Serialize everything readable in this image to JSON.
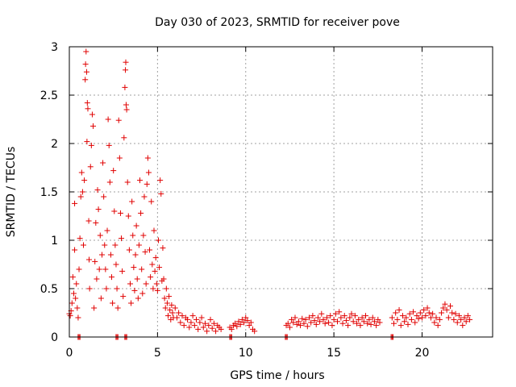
{
  "chart_data": {
    "type": "scatter",
    "title": "Day 030 of 2023, SRMTID for receiver pove",
    "xlabel": "GPS time / hours",
    "ylabel": "SRMTID / TECUs",
    "xlim": [
      0,
      24
    ],
    "ylim": [
      0,
      3
    ],
    "xticks": [
      0,
      5,
      10,
      15,
      20
    ],
    "yticks": [
      0,
      0.5,
      1,
      1.5,
      2,
      2.5,
      3
    ],
    "xtick_labels": [
      "0",
      "5",
      "10",
      "15",
      "20"
    ],
    "ytick_labels": [
      "0",
      "0.5",
      "1",
      "1.5",
      "2",
      "2.5",
      "3"
    ],
    "grid": true,
    "marker": "plus",
    "color": "#e00000",
    "series": [
      {
        "points": [
          [
            0.0,
            0.24
          ],
          [
            0.05,
            0.22
          ],
          [
            0.1,
            0.27
          ],
          [
            0.15,
            0.35
          ],
          [
            0.2,
            0.62
          ],
          [
            0.25,
            0.45
          ],
          [
            0.3,
            0.9
          ],
          [
            0.3,
            1.38
          ],
          [
            0.35,
            0.4
          ],
          [
            0.4,
            0.55
          ],
          [
            0.45,
            0.3
          ],
          [
            0.5,
            0.2
          ],
          [
            0.55,
            0.7
          ],
          [
            0.6,
            1.02
          ],
          [
            0.65,
            1.45
          ],
          [
            0.7,
            1.7
          ],
          [
            0.75,
            1.5
          ],
          [
            0.8,
            0.95
          ],
          [
            0.85,
            1.62
          ],
          [
            0.9,
            2.66
          ],
          [
            0.92,
            2.82
          ],
          [
            0.95,
            2.95
          ],
          [
            0.98,
            2.74
          ],
          [
            1.0,
            2.02
          ],
          [
            1.02,
            2.42
          ],
          [
            1.05,
            2.36
          ],
          [
            1.1,
            1.2
          ],
          [
            1.12,
            0.8
          ],
          [
            1.15,
            0.5
          ],
          [
            1.2,
            1.76
          ],
          [
            1.25,
            1.98
          ],
          [
            1.3,
            2.3
          ],
          [
            1.35,
            2.18
          ],
          [
            1.4,
            0.3
          ],
          [
            1.45,
            0.78
          ],
          [
            1.5,
            1.18
          ],
          [
            1.55,
            0.6
          ],
          [
            1.6,
            1.52
          ],
          [
            1.65,
            1.32
          ],
          [
            1.7,
            0.7
          ],
          [
            1.75,
            1.05
          ],
          [
            1.8,
            0.4
          ],
          [
            1.85,
            0.85
          ],
          [
            1.9,
            1.8
          ],
          [
            1.95,
            1.45
          ],
          [
            2.0,
            0.95
          ],
          [
            2.05,
            0.7
          ],
          [
            2.1,
            0.5
          ],
          [
            2.15,
            1.1
          ],
          [
            2.2,
            2.25
          ],
          [
            2.25,
            1.98
          ],
          [
            2.3,
            1.6
          ],
          [
            2.35,
            0.85
          ],
          [
            2.4,
            0.62
          ],
          [
            2.45,
            0.35
          ],
          [
            2.5,
            1.72
          ],
          [
            2.55,
            1.3
          ],
          [
            2.6,
            0.95
          ],
          [
            2.65,
            0.75
          ],
          [
            2.7,
            0.5
          ],
          [
            2.75,
            0.3
          ],
          [
            2.8,
            2.24
          ],
          [
            2.85,
            1.85
          ],
          [
            2.9,
            1.28
          ],
          [
            2.95,
            1.02
          ],
          [
            3.0,
            0.68
          ],
          [
            3.05,
            0.42
          ],
          [
            3.1,
            2.06
          ],
          [
            3.15,
            2.58
          ],
          [
            3.18,
            2.76
          ],
          [
            3.2,
            2.84
          ],
          [
            3.22,
            2.4
          ],
          [
            3.25,
            2.35
          ],
          [
            3.3,
            1.6
          ],
          [
            3.35,
            1.25
          ],
          [
            3.4,
            0.9
          ],
          [
            3.45,
            0.55
          ],
          [
            3.5,
            0.35
          ],
          [
            3.55,
            1.4
          ],
          [
            3.6,
            1.05
          ],
          [
            3.65,
            0.72
          ],
          [
            3.7,
            0.48
          ],
          [
            3.75,
            0.85
          ],
          [
            3.8,
            1.15
          ],
          [
            3.85,
            0.6
          ],
          [
            3.9,
            0.4
          ],
          [
            3.95,
            0.95
          ],
          [
            4.0,
            1.62
          ],
          [
            4.05,
            1.28
          ],
          [
            4.1,
            0.7
          ],
          [
            4.15,
            0.45
          ],
          [
            4.2,
            1.05
          ],
          [
            4.25,
            1.45
          ],
          [
            4.3,
            0.88
          ],
          [
            4.35,
            0.55
          ],
          [
            4.4,
            1.58
          ],
          [
            4.45,
            1.85
          ],
          [
            4.5,
            1.7
          ],
          [
            4.55,
            0.9
          ],
          [
            4.6,
            0.62
          ],
          [
            4.65,
            1.4
          ],
          [
            4.7,
            0.75
          ],
          [
            4.75,
            0.5
          ],
          [
            4.8,
            1.1
          ],
          [
            4.85,
            0.68
          ],
          [
            4.9,
            0.82
          ],
          [
            4.95,
            0.55
          ],
          [
            5.0,
            0.48
          ],
          [
            5.05,
            1.0
          ],
          [
            5.1,
            0.72
          ],
          [
            5.15,
            1.62
          ],
          [
            5.2,
            1.48
          ],
          [
            5.25,
            0.58
          ],
          [
            5.3,
            0.92
          ],
          [
            5.35,
            0.6
          ],
          [
            5.4,
            0.4
          ],
          [
            5.45,
            0.3
          ],
          [
            5.5,
            0.5
          ],
          [
            5.55,
            0.35
          ],
          [
            5.6,
            0.22
          ],
          [
            5.65,
            0.42
          ],
          [
            5.7,
            0.28
          ],
          [
            5.75,
            0.18
          ],
          [
            5.8,
            0.33
          ],
          [
            5.85,
            0.25
          ],
          [
            5.9,
            0.2
          ],
          [
            6.0,
            0.3
          ],
          [
            6.1,
            0.2
          ],
          [
            6.2,
            0.25
          ],
          [
            6.3,
            0.15
          ],
          [
            6.4,
            0.22
          ],
          [
            6.5,
            0.12
          ],
          [
            6.6,
            0.2
          ],
          [
            6.7,
            0.18
          ],
          [
            6.8,
            0.1
          ],
          [
            6.9,
            0.15
          ],
          [
            7.0,
            0.22
          ],
          [
            7.1,
            0.12
          ],
          [
            7.2,
            0.18
          ],
          [
            7.3,
            0.08
          ],
          [
            7.4,
            0.15
          ],
          [
            7.5,
            0.2
          ],
          [
            7.6,
            0.1
          ],
          [
            7.7,
            0.14
          ],
          [
            7.8,
            0.06
          ],
          [
            7.9,
            0.12
          ],
          [
            8.0,
            0.18
          ],
          [
            8.1,
            0.09
          ],
          [
            8.2,
            0.14
          ],
          [
            8.3,
            0.06
          ],
          [
            8.4,
            0.12
          ],
          [
            8.5,
            0.1
          ],
          [
            8.6,
            0.08
          ],
          [
            9.1,
            0.1
          ],
          [
            9.2,
            0.08
          ],
          [
            9.3,
            0.12
          ],
          [
            9.4,
            0.14
          ],
          [
            9.5,
            0.11
          ],
          [
            9.6,
            0.16
          ],
          [
            9.7,
            0.13
          ],
          [
            9.8,
            0.18
          ],
          [
            9.9,
            0.15
          ],
          [
            10.0,
            0.2
          ],
          [
            10.1,
            0.17
          ],
          [
            10.2,
            0.12
          ],
          [
            10.3,
            0.15
          ],
          [
            10.4,
            0.08
          ],
          [
            10.5,
            0.06
          ],
          [
            12.3,
            0.12
          ],
          [
            12.4,
            0.14
          ],
          [
            12.5,
            0.1
          ],
          [
            12.6,
            0.18
          ],
          [
            12.7,
            0.15
          ],
          [
            12.8,
            0.2
          ],
          [
            12.9,
            0.13
          ],
          [
            13.0,
            0.16
          ],
          [
            13.1,
            0.12
          ],
          [
            13.2,
            0.19
          ],
          [
            13.3,
            0.14
          ],
          [
            13.4,
            0.18
          ],
          [
            13.5,
            0.11
          ],
          [
            13.6,
            0.2
          ],
          [
            13.7,
            0.15
          ],
          [
            13.8,
            0.22
          ],
          [
            13.9,
            0.17
          ],
          [
            14.0,
            0.13
          ],
          [
            14.1,
            0.2
          ],
          [
            14.2,
            0.16
          ],
          [
            14.3,
            0.24
          ],
          [
            14.4,
            0.18
          ],
          [
            14.5,
            0.14
          ],
          [
            14.6,
            0.2
          ],
          [
            14.7,
            0.15
          ],
          [
            14.8,
            0.22
          ],
          [
            14.9,
            0.12
          ],
          [
            15.0,
            0.18
          ],
          [
            15.1,
            0.24
          ],
          [
            15.2,
            0.16
          ],
          [
            15.3,
            0.26
          ],
          [
            15.4,
            0.2
          ],
          [
            15.5,
            0.14
          ],
          [
            15.6,
            0.22
          ],
          [
            15.7,
            0.17
          ],
          [
            15.8,
            0.12
          ],
          [
            15.9,
            0.2
          ],
          [
            16.0,
            0.24
          ],
          [
            16.1,
            0.16
          ],
          [
            16.2,
            0.22
          ],
          [
            16.3,
            0.14
          ],
          [
            16.4,
            0.18
          ],
          [
            16.5,
            0.12
          ],
          [
            16.6,
            0.2
          ],
          [
            16.7,
            0.16
          ],
          [
            16.8,
            0.22
          ],
          [
            16.9,
            0.14
          ],
          [
            17.0,
            0.18
          ],
          [
            17.1,
            0.13
          ],
          [
            17.2,
            0.2
          ],
          [
            17.3,
            0.16
          ],
          [
            17.4,
            0.12
          ],
          [
            17.5,
            0.18
          ],
          [
            17.6,
            0.15
          ],
          [
            18.3,
            0.2
          ],
          [
            18.4,
            0.14
          ],
          [
            18.5,
            0.25
          ],
          [
            18.6,
            0.18
          ],
          [
            18.7,
            0.28
          ],
          [
            18.8,
            0.12
          ],
          [
            18.9,
            0.22
          ],
          [
            19.0,
            0.16
          ],
          [
            19.1,
            0.2
          ],
          [
            19.2,
            0.13
          ],
          [
            19.3,
            0.24
          ],
          [
            19.4,
            0.18
          ],
          [
            19.5,
            0.26
          ],
          [
            19.6,
            0.15
          ],
          [
            19.7,
            0.22
          ],
          [
            19.8,
            0.19
          ],
          [
            19.9,
            0.25
          ],
          [
            20.0,
            0.2
          ],
          [
            20.1,
            0.28
          ],
          [
            20.2,
            0.22
          ],
          [
            20.3,
            0.3
          ],
          [
            20.4,
            0.25
          ],
          [
            20.5,
            0.2
          ],
          [
            20.6,
            0.24
          ],
          [
            20.7,
            0.15
          ],
          [
            20.8,
            0.2
          ],
          [
            20.9,
            0.12
          ],
          [
            21.0,
            0.18
          ],
          [
            21.1,
            0.25
          ],
          [
            21.2,
            0.3
          ],
          [
            21.3,
            0.34
          ],
          [
            21.4,
            0.28
          ],
          [
            21.5,
            0.2
          ],
          [
            21.6,
            0.32
          ],
          [
            21.7,
            0.25
          ],
          [
            21.8,
            0.18
          ],
          [
            21.9,
            0.24
          ],
          [
            22.0,
            0.15
          ],
          [
            22.1,
            0.22
          ],
          [
            22.2,
            0.18
          ],
          [
            22.3,
            0.12
          ],
          [
            22.4,
            0.2
          ],
          [
            22.5,
            0.16
          ],
          [
            22.6,
            0.22
          ],
          [
            22.7,
            0.18
          ]
        ]
      }
    ],
    "zero_points": [
      0.55,
      2.7,
      3.2,
      9.15,
      12.3,
      18.3
    ]
  }
}
